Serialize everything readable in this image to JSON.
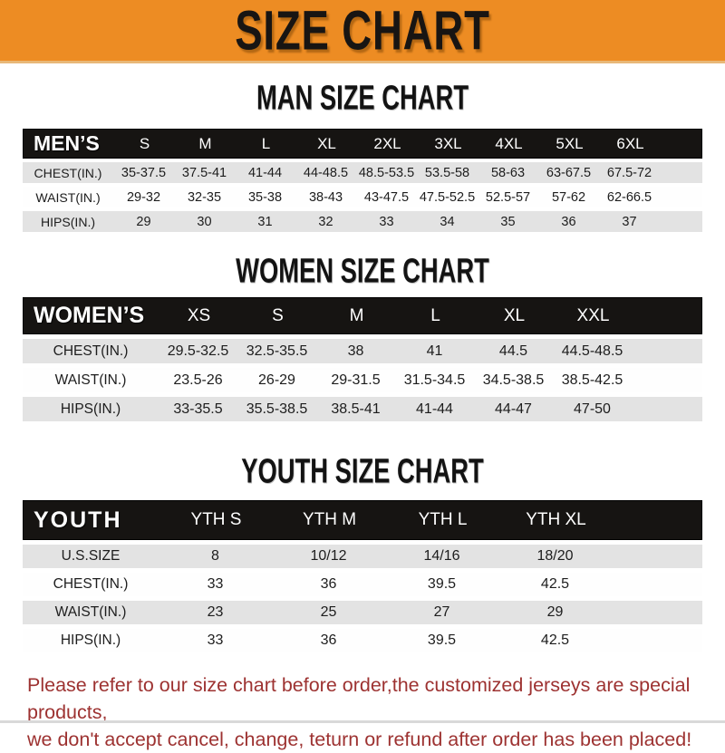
{
  "banner": {
    "title": "SIZE CHART"
  },
  "colors": {
    "banner_bg": "#ED8C23",
    "bar_bg": "#161412",
    "row_gray": "#E3E3E3",
    "footer_red": "#9D3231"
  },
  "chart_data": [
    {
      "type": "table",
      "title": "MAN SIZE CHART",
      "header_label": "MEN’S",
      "columns": [
        "S",
        "M",
        "L",
        "XL",
        "2XL",
        "3XL",
        "4XL",
        "5XL",
        "6XL"
      ],
      "rows": [
        {
          "label": "CHEST(IN.)",
          "values": [
            "35-37.5",
            "37.5-41",
            "41-44",
            "44-48.5",
            "48.5-53.5",
            "53.5-58",
            "58-63",
            "63-67.5",
            "67.5-72"
          ]
        },
        {
          "label": "WAIST(IN.)",
          "values": [
            "29-32",
            "32-35",
            "35-38",
            "38-43",
            "43-47.5",
            "47.5-52.5",
            "52.5-57",
            "57-62",
            "62-66.5"
          ]
        },
        {
          "label": "HIPS(IN.)",
          "values": [
            "29",
            "30",
            "31",
            "32",
            "33",
            "34",
            "35",
            "36",
            "37"
          ]
        }
      ]
    },
    {
      "type": "table",
      "title": "WOMEN SIZE CHART",
      "header_label": "WOMEN’S",
      "columns": [
        "XS",
        "S",
        "M",
        "L",
        "XL",
        "XXL"
      ],
      "rows": [
        {
          "label": "CHEST(IN.)",
          "values": [
            "29.5-32.5",
            "32.5-35.5",
            "38",
            "41",
            "44.5",
            "44.5-48.5"
          ]
        },
        {
          "label": "WAIST(IN.)",
          "values": [
            "23.5-26",
            "26-29",
            "29-31.5",
            "31.5-34.5",
            "34.5-38.5",
            "38.5-42.5"
          ]
        },
        {
          "label": "HIPS(IN.)",
          "values": [
            "33-35.5",
            "35.5-38.5",
            "38.5-41",
            "41-44",
            "44-47",
            "47-50"
          ]
        }
      ]
    },
    {
      "type": "table",
      "title": "YOUTH SIZE CHART",
      "header_label": "YOUTH",
      "columns": [
        "YTH S",
        "YTH M",
        "YTH L",
        "YTH XL"
      ],
      "rows": [
        {
          "label": "U.S.SIZE",
          "values": [
            "8",
            "10/12",
            "14/16",
            "18/20"
          ]
        },
        {
          "label": "CHEST(IN.)",
          "values": [
            "33",
            "36",
            "39.5",
            "42.5"
          ]
        },
        {
          "label": "WAIST(IN.)",
          "values": [
            "23",
            "25",
            "27",
            "29"
          ]
        },
        {
          "label": "HIPS(IN.)",
          "values": [
            "33",
            "36",
            "39.5",
            "42.5"
          ]
        }
      ]
    }
  ],
  "footer": {
    "line1": "Please refer to our size chart before order,the customized jerseys are special products,",
    "line2": "we don't accept cancel, change, teturn or refund after order has been placed!"
  }
}
